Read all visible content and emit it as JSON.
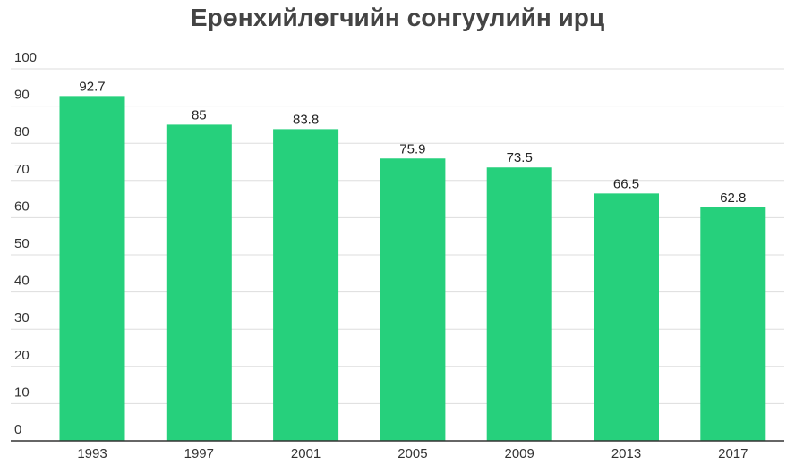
{
  "chart_data": {
    "type": "bar",
    "title": "Ерөнхийлөгчийн сонгуулийн ирц",
    "xlabel": "",
    "ylabel": "",
    "categories": [
      "1993",
      "1997",
      "2001",
      "2005",
      "2009",
      "2013",
      "2017"
    ],
    "values": [
      92.7,
      85,
      83.8,
      75.9,
      73.5,
      66.5,
      62.8
    ],
    "data_labels": [
      "92.7",
      "85",
      "83.8",
      "75.9",
      "73.5",
      "66.5",
      "62.8"
    ],
    "ylim": [
      0,
      100
    ],
    "yticks": [
      0,
      10,
      20,
      30,
      40,
      50,
      60,
      70,
      80,
      90,
      100
    ],
    "grid": true,
    "bar_color": "#26d07c"
  }
}
